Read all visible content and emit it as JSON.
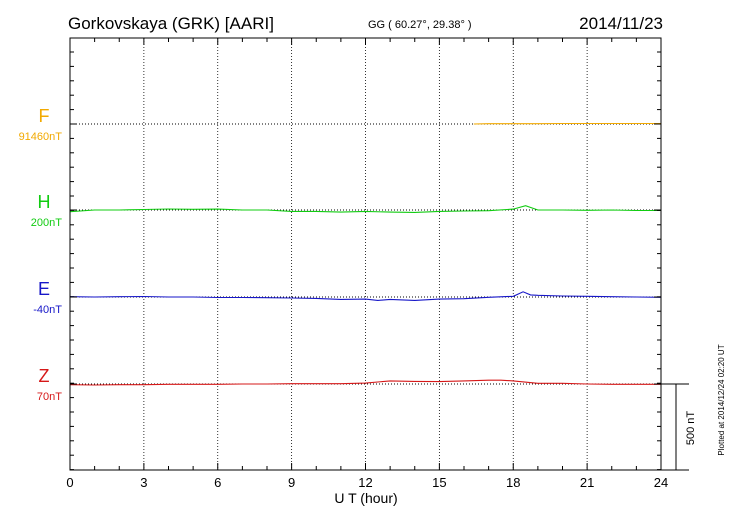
{
  "header": {
    "station": "Gorkovskaya (GRK)  [AARI]",
    "coords": "GG ( 60.27°,  29.38° )",
    "date": "2014/11/23"
  },
  "footer_note": "Plotted at 2014/12/24 02:20 UT",
  "chart_data": {
    "type": "line",
    "xlabel": "U T (hour)",
    "xlim": [
      0,
      24
    ],
    "xticks": [
      0,
      3,
      6,
      9,
      12,
      15,
      18,
      21,
      24
    ],
    "scale_bar_label": "500 nT",
    "grid": true,
    "series": [
      {
        "name": "F",
        "baseline_label": "91460nT",
        "color": "#f2a900",
        "offset": 0,
        "points": [
          [
            16.4,
            0
          ],
          [
            17,
            2
          ],
          [
            18,
            2
          ],
          [
            19,
            2
          ],
          [
            20,
            3
          ],
          [
            21,
            3
          ],
          [
            22,
            3
          ],
          [
            23,
            3
          ],
          [
            24,
            3
          ]
        ]
      },
      {
        "name": "H",
        "baseline_label": "200nT",
        "color": "#11cc11",
        "offset": 0,
        "points": [
          [
            0,
            -10
          ],
          [
            1,
            0
          ],
          [
            2,
            0
          ],
          [
            3,
            3
          ],
          [
            4,
            6
          ],
          [
            5,
            4
          ],
          [
            6,
            5
          ],
          [
            7,
            0
          ],
          [
            8,
            0
          ],
          [
            9,
            -8
          ],
          [
            10,
            -8
          ],
          [
            11,
            -12
          ],
          [
            12,
            -8
          ],
          [
            13,
            -12
          ],
          [
            14,
            -14
          ],
          [
            15,
            -8
          ],
          [
            16,
            -6
          ],
          [
            17,
            -4
          ],
          [
            18,
            5
          ],
          [
            18.5,
            25
          ],
          [
            19,
            0
          ],
          [
            20,
            0
          ],
          [
            21,
            -2
          ],
          [
            22,
            0
          ],
          [
            23,
            -3
          ],
          [
            24,
            -3
          ]
        ]
      },
      {
        "name": "E",
        "baseline_label": "-40nT",
        "color": "#1616c8",
        "offset": 0,
        "points": [
          [
            0,
            2
          ],
          [
            1,
            0
          ],
          [
            2,
            2
          ],
          [
            3,
            3
          ],
          [
            4,
            0
          ],
          [
            5,
            0
          ],
          [
            6,
            -3
          ],
          [
            7,
            -3
          ],
          [
            8,
            -4
          ],
          [
            9,
            -6
          ],
          [
            10,
            -8
          ],
          [
            11,
            -14
          ],
          [
            12,
            -12
          ],
          [
            12.5,
            -20
          ],
          [
            13,
            -14
          ],
          [
            14,
            -20
          ],
          [
            15,
            -12
          ],
          [
            16,
            -10
          ],
          [
            17,
            -2
          ],
          [
            18,
            4
          ],
          [
            18.4,
            30
          ],
          [
            18.7,
            12
          ],
          [
            19,
            10
          ],
          [
            20,
            6
          ],
          [
            21,
            4
          ],
          [
            22,
            2
          ],
          [
            23,
            0
          ],
          [
            24,
            -2
          ]
        ]
      },
      {
        "name": "Z",
        "baseline_label": "70nT",
        "color": "#d61818",
        "offset": 0,
        "points": [
          [
            0,
            -4
          ],
          [
            1,
            -6
          ],
          [
            2,
            -4
          ],
          [
            3,
            -4
          ],
          [
            4,
            -2
          ],
          [
            5,
            -2
          ],
          [
            6,
            -2
          ],
          [
            7,
            0
          ],
          [
            8,
            0
          ],
          [
            9,
            2
          ],
          [
            10,
            2
          ],
          [
            11,
            2
          ],
          [
            12,
            5
          ],
          [
            13,
            18
          ],
          [
            14,
            15
          ],
          [
            15,
            14
          ],
          [
            16,
            18
          ],
          [
            17,
            22
          ],
          [
            17.5,
            22
          ],
          [
            18,
            18
          ],
          [
            19,
            4
          ],
          [
            20,
            4
          ],
          [
            21,
            0
          ],
          [
            22,
            -2
          ],
          [
            23,
            -2
          ],
          [
            24,
            -2
          ]
        ]
      }
    ]
  }
}
